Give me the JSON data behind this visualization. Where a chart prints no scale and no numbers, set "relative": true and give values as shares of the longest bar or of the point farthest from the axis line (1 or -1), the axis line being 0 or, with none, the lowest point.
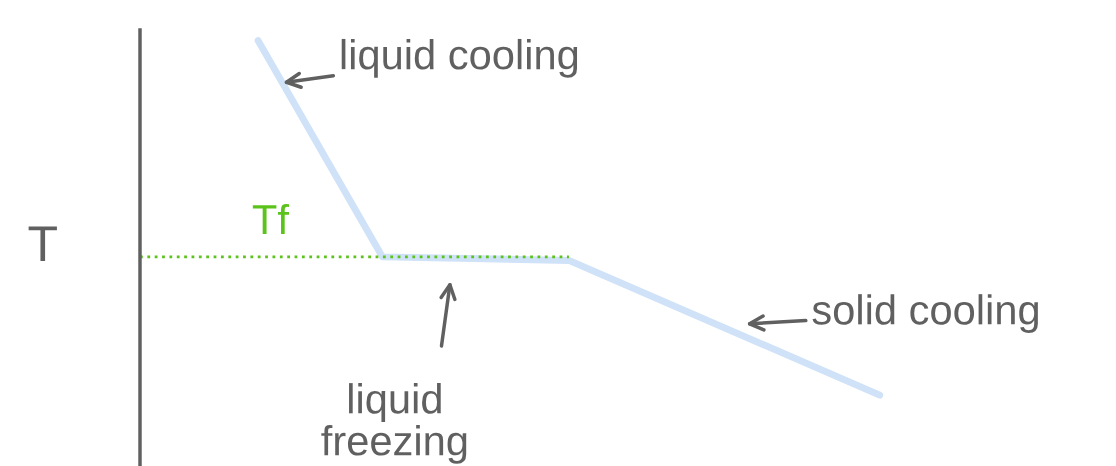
{
  "chart_data": {
    "type": "line",
    "relative": true,
    "ylabel": "T",
    "categories": [
      null,
      null,
      null,
      null,
      null,
      null,
      null,
      null,
      null,
      null,
      null
    ],
    "series": [
      {
        "color": "#cfe2f8",
        "values": [
          1,
          null,
          0.39,
          null,
          null,
          0.38,
          null,
          null,
          null,
          null,
          0
        ]
      }
    ],
    "ref_lines": [
      {
        "axis": "y",
        "value": 0.39,
        "label": "Tf",
        "color": "#5cc21c",
        "line_style": "dotted"
      }
    ],
    "annotations": [
      "liquid cooling",
      "solid cooling",
      "liquid freezing"
    ],
    "grid": false,
    "marker": "none",
    "line_style": "solid"
  }
}
